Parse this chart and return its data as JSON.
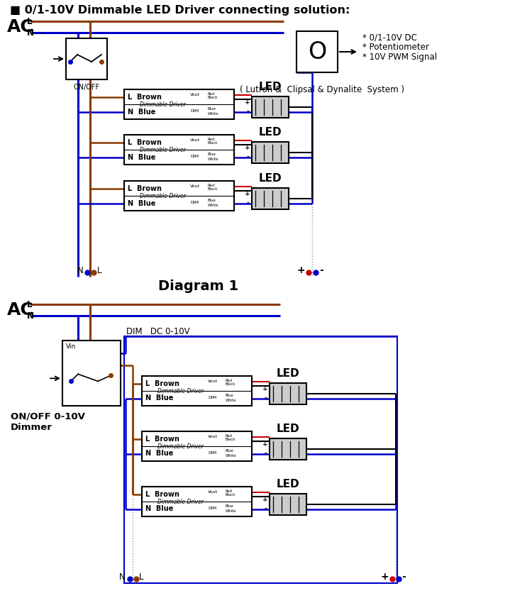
{
  "title": "0/1-10V Dimmable LED Driver connecting solution:",
  "bg_color": "#ffffff",
  "brown": "#8B3A00",
  "blue": "#0000CC",
  "black": "#000000",
  "red": "#CC0000",
  "gray": "#999999",
  "notes": [
    "* 0/1-10V DC",
    "* Potentiometer",
    "* 10V PWM Signal"
  ],
  "notes2": "( Lutron &  Clipsal & Dynalite  System )",
  "diagram1_label": "Diagram 1",
  "driver_label": "Dimmable Driver",
  "led_label": "LED",
  "onoff_label": "ON/OFF",
  "onoff2_line1": "ON/OFF 0-10V",
  "onoff2_line2": "Dimmer",
  "vin_label": "Vin",
  "dim_dc_label": "DIM   DC 0-10V"
}
